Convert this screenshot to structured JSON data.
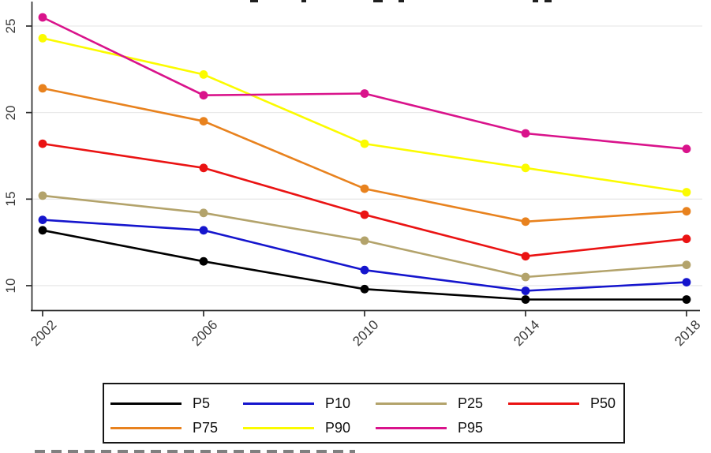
{
  "chart_data": {
    "type": "line",
    "categories": [
      "2002",
      "2006",
      "2010",
      "2014",
      "2018"
    ],
    "series": [
      {
        "name": "P5",
        "color": "#000000",
        "values": [
          13.2,
          11.4,
          9.8,
          9.2,
          9.2
        ]
      },
      {
        "name": "P10",
        "color": "#1515cd",
        "values": [
          13.8,
          13.2,
          10.9,
          9.7,
          10.2
        ]
      },
      {
        "name": "P25",
        "color": "#b3a36b",
        "values": [
          15.2,
          14.2,
          12.6,
          10.5,
          11.2
        ]
      },
      {
        "name": "P50",
        "color": "#ea1313",
        "values": [
          18.2,
          16.8,
          14.1,
          11.7,
          12.7
        ]
      },
      {
        "name": "P75",
        "color": "#e8821e",
        "values": [
          21.4,
          19.5,
          15.6,
          13.7,
          14.3
        ]
      },
      {
        "name": "P90",
        "color": "#fbfb00",
        "values": [
          24.3,
          22.2,
          18.2,
          16.8,
          15.4
        ]
      },
      {
        "name": "P95",
        "color": "#d9138b",
        "values": [
          25.5,
          21.0,
          21.1,
          18.8,
          17.9
        ]
      }
    ],
    "xlabel": "",
    "ylabel": "",
    "yticks": [
      10,
      15,
      20,
      25
    ],
    "ylim": [
      8.6,
      26.5
    ],
    "grid": "horizontal",
    "legend_position": "bottom",
    "marker": "circle"
  },
  "colors": {
    "axis": "#2d2d2d",
    "gridline": "#e9e9e9",
    "tick_text": "#3a3a3a",
    "legend_border": "#161616"
  }
}
